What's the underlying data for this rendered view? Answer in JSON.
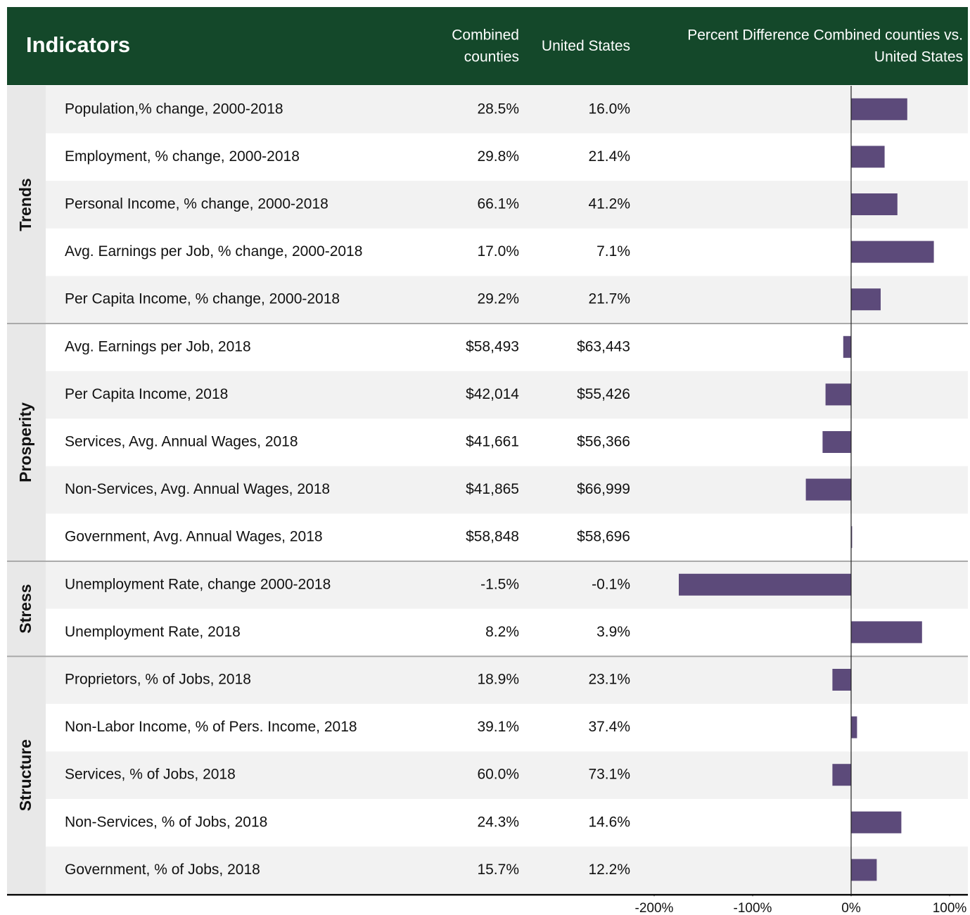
{
  "header": {
    "title": "Indicators",
    "columns": [
      "Combined counties",
      "United States",
      "Percent Difference Combined counties vs. United States"
    ]
  },
  "groups": [
    {
      "name": "Trends",
      "rows": [
        {
          "label": "Population,% change, 2000-2018",
          "combined": "28.5%",
          "us": "16.0%",
          "diff": 57
        },
        {
          "label": "Employment, % change, 2000-2018",
          "combined": "29.8%",
          "us": "21.4%",
          "diff": 34
        },
        {
          "label": "Personal Income, % change, 2000-2018",
          "combined": "66.1%",
          "us": "41.2%",
          "diff": 47
        },
        {
          "label": "Avg. Earnings per Job, % change, 2000-2018",
          "combined": "17.0%",
          "us": "7.1%",
          "diff": 84
        },
        {
          "label": "Per Capita Income, % change, 2000-2018",
          "combined": "29.2%",
          "us": "21.7%",
          "diff": 30
        }
      ]
    },
    {
      "name": "Prosperity",
      "rows": [
        {
          "label": "Avg. Earnings per Job, 2018",
          "combined": "$58,493",
          "us": "$63,443",
          "diff": -8
        },
        {
          "label": "Per Capita Income, 2018",
          "combined": "$42,014",
          "us": "$55,426",
          "diff": -26
        },
        {
          "label": "Services, Avg. Annual Wages, 2018",
          "combined": "$41,661",
          "us": "$56,366",
          "diff": -29
        },
        {
          "label": "Non-Services, Avg. Annual Wages, 2018",
          "combined": "$41,865",
          "us": "$66,999",
          "diff": -46
        },
        {
          "label": "Government, Avg. Annual Wages, 2018",
          "combined": "$58,848",
          "us": "$58,696",
          "diff": 1
        }
      ]
    },
    {
      "name": "Stress",
      "rows": [
        {
          "label": "Unemployment Rate, change 2000-2018",
          "combined": "-1.5%",
          "us": "-0.1%",
          "diff": -175
        },
        {
          "label": "Unemployment Rate, 2018",
          "combined": "8.2%",
          "us": "3.9%",
          "diff": 72
        }
      ]
    },
    {
      "name": "Structure",
      "rows": [
        {
          "label": "Proprietors, % of Jobs, 2018",
          "combined": "18.9%",
          "us": "23.1%",
          "diff": -19
        },
        {
          "label": "Non-Labor Income, % of Pers. Income, 2018",
          "combined": "39.1%",
          "us": "37.4%",
          "diff": 6
        },
        {
          "label": "Services, % of Jobs, 2018",
          "combined": "60.0%",
          "us": "73.1%",
          "diff": -19
        },
        {
          "label": "Non-Services, % of Jobs, 2018",
          "combined": "24.3%",
          "us": "14.6%",
          "diff": 51
        },
        {
          "label": "Government, % of Jobs, 2018",
          "combined": "15.7%",
          "us": "12.2%",
          "diff": 26
        }
      ]
    }
  ],
  "axis": {
    "xlim": [
      -200,
      100
    ],
    "xticks": [
      {
        "value": -200,
        "label": "-200%"
      },
      {
        "value": -100,
        "label": "-100%"
      },
      {
        "value": 0,
        "label": "0%"
      },
      {
        "value": 100,
        "label": "100%"
      }
    ],
    "bar_color": "#5c4a7a"
  }
}
